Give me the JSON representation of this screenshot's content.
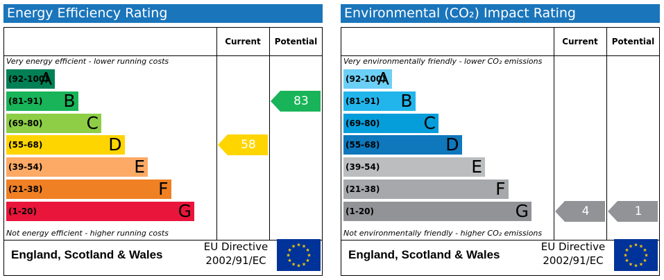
{
  "chart_data": [
    {
      "type": "bar",
      "title": "Energy Efficiency Rating",
      "columns": [
        "Current",
        "Potential"
      ],
      "top_note": "Very energy efficient - lower running costs",
      "bottom_note": "Not energy efficient - higher running costs",
      "bands": [
        {
          "range": "(92-100)",
          "letter": "A",
          "color": "#008054",
          "text_color": "#000000",
          "length": 1
        },
        {
          "range": "(81-91)",
          "letter": "B",
          "color": "#19b459",
          "text_color": "#000000",
          "length": 2
        },
        {
          "range": "(69-80)",
          "letter": "C",
          "color": "#8dce46",
          "text_color": "#000000",
          "length": 3
        },
        {
          "range": "(55-68)",
          "letter": "D",
          "color": "#ffd500",
          "text_color": "#000000",
          "length": 4
        },
        {
          "range": "(39-54)",
          "letter": "E",
          "color": "#fcaa65",
          "text_color": "#000000",
          "length": 5
        },
        {
          "range": "(21-38)",
          "letter": "F",
          "color": "#ef8023",
          "text_color": "#000000",
          "length": 6
        },
        {
          "range": "(1-20)",
          "letter": "G",
          "color": "#e9153b",
          "text_color": "#000000",
          "length": 7
        }
      ],
      "current": {
        "value": 58,
        "label": "58",
        "band": "D",
        "color": "#ffd500"
      },
      "potential": {
        "value": 83,
        "label": "83",
        "band": "B",
        "color": "#19b459"
      },
      "footer": {
        "country": "England, Scotland & Wales",
        "directive_line1": "EU Directive",
        "directive_line2": "2002/91/EC"
      }
    },
    {
      "type": "bar",
      "title": "Environmental (CO₂) Impact Rating",
      "columns": [
        "Current",
        "Potential"
      ],
      "top_note": "Very environmentally friendly - lower CO₂ emissions",
      "bottom_note": "Not environmentally friendly - higher CO₂ emissions",
      "bands": [
        {
          "range": "(92-100)",
          "letter": "A",
          "color": "#6ccff6",
          "text_color": "#000000",
          "length": 1
        },
        {
          "range": "(81-91)",
          "letter": "B",
          "color": "#22b5eb",
          "text_color": "#000000",
          "length": 2
        },
        {
          "range": "(69-80)",
          "letter": "C",
          "color": "#069ddb",
          "text_color": "#000000",
          "length": 3
        },
        {
          "range": "(55-68)",
          "letter": "D",
          "color": "#0f77bc",
          "text_color": "#000000",
          "length": 4
        },
        {
          "range": "(39-54)",
          "letter": "E",
          "color": "#bbbdbf",
          "text_color": "#000000",
          "length": 5
        },
        {
          "range": "(21-38)",
          "letter": "F",
          "color": "#a6a8ab",
          "text_color": "#000000",
          "length": 6
        },
        {
          "range": "(1-20)",
          "letter": "G",
          "color": "#919396",
          "text_color": "#000000",
          "length": 7
        }
      ],
      "current": {
        "value": 4,
        "label": "4",
        "band": "G",
        "color": "#919396"
      },
      "potential": {
        "value": 1,
        "label": "1",
        "band": "G",
        "color": "#919396"
      },
      "footer": {
        "country": "England, Scotland & Wales",
        "directive_line1": "EU Directive",
        "directive_line2": "2002/91/EC"
      }
    }
  ],
  "icons": {
    "eu_flag": "eu-flag-icon",
    "flag_color": "#003399",
    "star_color": "#ffcc00"
  }
}
